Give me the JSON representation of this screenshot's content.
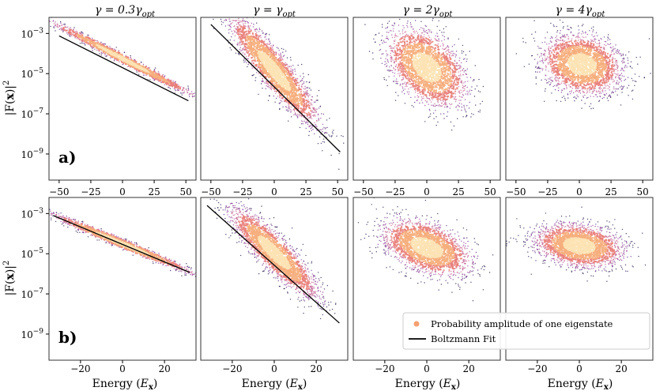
{
  "figure": {
    "column_titles": [
      "γ = 0.3γ",
      "γ = γ",
      "γ = 2γ",
      "γ = 4γ"
    ],
    "column_title_subscript": "opt",
    "y_label_prefix": "|F(",
    "y_label_bold": "x",
    "y_label_suffix": ")|",
    "y_label_power": "2",
    "x_label_prefix": "Energy (",
    "x_label_main": "E",
    "x_label_subscript": "x",
    "x_label_suffix": ")",
    "row_labels": [
      "a)",
      "b)"
    ],
    "legend": {
      "placement": "lower-right",
      "scatter_label": "Probability amplitude of one eigenstate",
      "fit_label": "Boltzmann Fit",
      "scatter_color": "#f4a070",
      "fit_color": "#000000"
    },
    "colormap": [
      "#2a1a4e",
      "#5a2b79",
      "#8a3f8f",
      "#c05a8c",
      "#e97f7a",
      "#f6ae7c",
      "#fde3b4"
    ]
  },
  "chart_data": [
    {
      "panel": "a1",
      "type": "scatter",
      "yscale": "log",
      "xlim": [
        -58,
        58
      ],
      "ylim_exp": [
        -10.3,
        -2.2
      ],
      "xticks": [
        -50,
        -25,
        0,
        25,
        50
      ],
      "yticks_exp": [
        -3,
        -5,
        -7,
        -9
      ],
      "show_yticks": true,
      "row_label": "a)",
      "cloud": {
        "cx": 0,
        "cy": -4.25,
        "sx": 28,
        "sy": 0.12,
        "slope": -0.0325,
        "n": 1500
      },
      "fit": {
        "x": [
          -50,
          52
        ],
        "log10_y": [
          -3.12,
          -6.35
        ]
      }
    },
    {
      "panel": "a2",
      "type": "scatter",
      "yscale": "log",
      "xlim": [
        -58,
        58
      ],
      "ylim_exp": [
        -10.3,
        -2.2
      ],
      "xticks": [
        -50,
        -25,
        0,
        25,
        50
      ],
      "yticks_exp": [
        -3,
        -5,
        -7,
        -9
      ],
      "show_yticks": false,
      "cloud": {
        "cx": 0,
        "cy": -4.85,
        "sx": 17,
        "sy": 0.55,
        "slope": -0.07,
        "n": 2500
      },
      "fit": {
        "x": [
          -50,
          52
        ],
        "log10_y": [
          -2.55,
          -8.9
        ]
      }
    },
    {
      "panel": "a3",
      "type": "scatter",
      "yscale": "log",
      "xlim": [
        -58,
        58
      ],
      "ylim_exp": [
        -10.3,
        -2.2
      ],
      "xticks": [
        -50,
        -25,
        0,
        25,
        50
      ],
      "yticks_exp": [
        -3,
        -5,
        -7,
        -9
      ],
      "show_yticks": false,
      "cloud": {
        "cx": 0,
        "cy": -4.7,
        "sx": 15,
        "sy": 0.85,
        "slope": -0.028,
        "n": 2500
      }
    },
    {
      "panel": "a4",
      "type": "scatter",
      "yscale": "log",
      "xlim": [
        -58,
        58
      ],
      "ylim_exp": [
        -10.3,
        -2.2
      ],
      "xticks": [
        -50,
        -25,
        0,
        25,
        50
      ],
      "yticks_exp": [
        -3,
        -5,
        -7,
        -9
      ],
      "show_yticks": false,
      "cloud": {
        "cx": 2,
        "cy": -4.55,
        "sx": 15,
        "sy": 0.7,
        "slope": -0.008,
        "n": 2500
      }
    },
    {
      "panel": "b1",
      "type": "scatter",
      "yscale": "log",
      "xlim": [
        -35,
        35
      ],
      "ylim_exp": [
        -10.3,
        -2.2
      ],
      "xticks": [
        -20,
        0,
        20
      ],
      "yticks_exp": [
        -3,
        -5,
        -7,
        -9
      ],
      "show_yticks": true,
      "row_label": "b)",
      "cloud": {
        "cx": 0,
        "cy": -4.5,
        "sx": 17,
        "sy": 0.12,
        "slope": -0.0435,
        "n": 1500
      },
      "fit": {
        "x": [
          -33,
          32
        ],
        "log10_y": [
          -3.1,
          -5.93
        ]
      }
    },
    {
      "panel": "b2",
      "type": "scatter",
      "yscale": "log",
      "xlim": [
        -35,
        35
      ],
      "ylim_exp": [
        -10.3,
        -2.2
      ],
      "xticks": [
        -20,
        0,
        20
      ],
      "yticks_exp": [
        -3,
        -5,
        -7,
        -9
      ],
      "show_yticks": false,
      "cloud": {
        "cx": 0,
        "cy": -4.95,
        "sx": 10,
        "sy": 0.5,
        "slope": -0.095,
        "n": 2500
      },
      "fit": {
        "x": [
          -32,
          31
        ],
        "log10_y": [
          -2.6,
          -8.45
        ]
      }
    },
    {
      "panel": "b3",
      "type": "scatter",
      "yscale": "log",
      "xlim": [
        -35,
        35
      ],
      "ylim_exp": [
        -10.3,
        -2.2
      ],
      "xticks": [
        -20,
        0,
        20
      ],
      "yticks_exp": [
        -3,
        -5,
        -7,
        -9
      ],
      "show_yticks": false,
      "cloud": {
        "cx": 0,
        "cy": -4.7,
        "sx": 10,
        "sy": 0.6,
        "slope": -0.03,
        "n": 2500
      }
    },
    {
      "panel": "b4",
      "type": "scatter",
      "yscale": "log",
      "xlim": [
        -35,
        35
      ],
      "ylim_exp": [
        -10.3,
        -2.2
      ],
      "xticks": [
        -20,
        0,
        20
      ],
      "yticks_exp": [
        -3,
        -5,
        -7,
        -9
      ],
      "show_yticks": false,
      "cloud": {
        "cx": 0,
        "cy": -4.6,
        "sx": 10,
        "sy": 0.5,
        "slope": -0.012,
        "n": 2500
      }
    }
  ]
}
